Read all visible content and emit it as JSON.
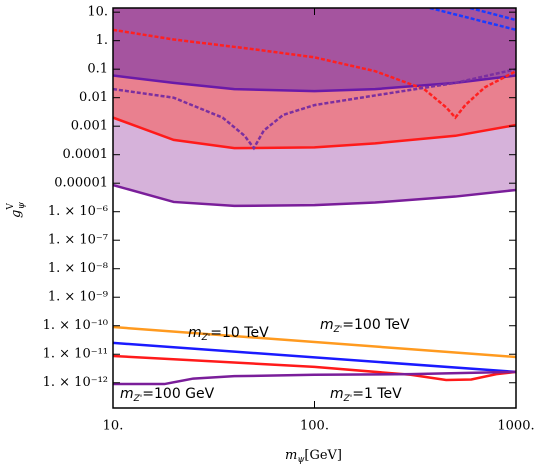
{
  "chart_data": {
    "type": "line",
    "xscale": "log",
    "yscale": "log",
    "xlim": [
      10,
      1000
    ],
    "ylim": [
      1.3e-13,
      14
    ],
    "xticks": [
      {
        "value": 10,
        "label": "10."
      },
      {
        "value": 100,
        "label": "100."
      },
      {
        "value": 1000,
        "label": "1000."
      }
    ],
    "yticks": [
      {
        "value": 10,
        "label": "10."
      },
      {
        "value": 1,
        "label": "1."
      },
      0.1,
      0.01,
      0.001,
      0.0001,
      1e-05,
      {
        "value": 1e-06,
        "label": "1. × 10⁻⁶"
      },
      {
        "value": 1e-07,
        "label": "1. × 10⁻⁷"
      },
      {
        "value": 1e-08,
        "label": "1. × 10⁻⁸"
      },
      {
        "value": 1e-09,
        "label": "1. × 10⁻⁹"
      },
      {
        "value": 1e-10,
        "label": "1. × 10⁻¹⁰"
      },
      {
        "value": 1e-11,
        "label": "1. × 10⁻¹¹"
      },
      {
        "value": 1e-12,
        "label": "1. × 10⁻¹²"
      }
    ],
    "xlabel": {
      "symbol": "m",
      "sub": "ψ",
      "text": "[GeV]"
    },
    "ylabel": {
      "symbol": "g",
      "sub": "ψ",
      "sup": "V"
    },
    "series": [
      {
        "color": "#7a1e9a",
        "fill": "#d6b2da",
        "x": [
          10,
          20,
          40,
          100,
          200,
          500,
          1000
        ],
        "values": [
          8.6e-06,
          2.2e-06,
          1.6e-06,
          1.7e-06,
          2.1e-06,
          3.4e-06,
          5.8e-06
        ]
      },
      {
        "color": "#ff1a1a",
        "fill": "#e9808f",
        "x": [
          10,
          20,
          40,
          100,
          200,
          500,
          1000
        ],
        "values": [
          0.002,
          0.00033,
          0.00017,
          0.00018,
          0.00025,
          0.00046,
          0.0011
        ]
      },
      {
        "color": "#6a1aa8",
        "fill": "#a5549f",
        "x": [
          10,
          20,
          40,
          100,
          200,
          500,
          1000
        ],
        "values": [
          0.06,
          0.033,
          0.02,
          0.017,
          0.02,
          0.033,
          0.06
        ]
      },
      {
        "color": "#ff2020",
        "dash": true,
        "x": [
          10,
          20,
          50,
          100,
          200,
          350,
          450,
          500,
          560,
          700,
          1000
        ],
        "values": [
          2.4,
          1.1,
          0.5,
          0.26,
          0.085,
          0.02,
          0.0046,
          0.002,
          0.0055,
          0.023,
          0.085
        ]
      },
      {
        "color": "#7b2f9f",
        "dash": true,
        "x": [
          10,
          20,
          35,
          45,
          50,
          56,
          70,
          100,
          200,
          500,
          1000
        ],
        "values": [
          0.02,
          0.01,
          0.002,
          0.00046,
          0.00017,
          0.0007,
          0.0025,
          0.0055,
          0.012,
          0.033,
          0.1
        ]
      },
      {
        "color": "#1a3cff",
        "dash": true,
        "x": [
          374,
          1000
        ],
        "values": [
          14,
          2.4
        ]
      },
      {
        "color": "#1a3cff",
        "dash": true,
        "x": [
          592,
          1000
        ],
        "values": [
          14,
          5.3
        ]
      },
      {
        "color": "#ff9a1f",
        "x": [
          10,
          1000
        ],
        "values": [
          9e-11,
          8e-12
        ]
      },
      {
        "color": "#1a1aff",
        "x": [
          10,
          1000
        ],
        "values": [
          2.5e-11,
          2.4e-12
        ]
      },
      {
        "color": "#ff1a1a",
        "x": [
          10,
          100,
          300,
          450,
          600,
          800,
          1000
        ],
        "values": [
          8.7e-12,
          3.6e-12,
          1.9e-12,
          1.25e-12,
          1.3e-12,
          2e-12,
          2.4e-12
        ]
      },
      {
        "color": "#7a1e9a",
        "x": [
          10,
          18,
          25,
          40,
          100,
          300,
          1000
        ],
        "values": [
          9e-13,
          9e-13,
          1.4e-12,
          1.7e-12,
          1.9e-12,
          2e-12,
          2.4e-12
        ]
      }
    ],
    "annotations": [
      {
        "symbol": "m",
        "sub": "Z'",
        "text": "=10 TeV",
        "color": "#1a1aff"
      },
      {
        "symbol": "m",
        "sub": "Z'",
        "text": "=100 TeV",
        "color": "#ff9a1f"
      },
      {
        "symbol": "m",
        "sub": "Z'",
        "text": "=100 GeV",
        "color": "#7a1e9a"
      },
      {
        "symbol": "m",
        "sub": "Z'",
        "text": "=1 TeV",
        "color": "#ff1a1a"
      }
    ]
  }
}
